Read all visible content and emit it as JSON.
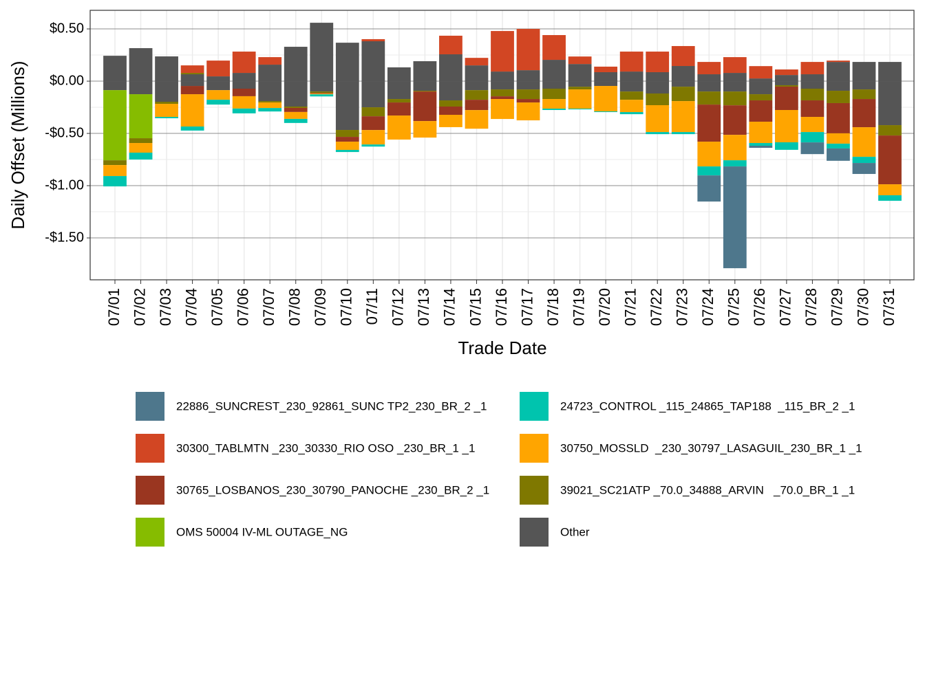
{
  "chart_data": {
    "type": "stacked_bar",
    "x_label": "Trade Date",
    "y_label": "Daily Offset (Millions)",
    "categories": [
      "07/01",
      "07/02",
      "07/03",
      "07/04",
      "07/05",
      "07/06",
      "07/07",
      "07/08",
      "07/09",
      "07/10",
      "07/11",
      "07/12",
      "07/13",
      "07/14",
      "07/15",
      "07/16",
      "07/17",
      "07/18",
      "07/19",
      "07/20",
      "07/21",
      "07/22",
      "07/23",
      "07/24",
      "07/25",
      "07/26",
      "07/27",
      "07/28",
      "07/29",
      "07/30",
      "07/31"
    ],
    "ylim": [
      -1.901,
      0.678
    ],
    "yticks": [
      {
        "value": 0.5,
        "label": "$0.50"
      },
      {
        "value": 0,
        "label": "$0.00"
      },
      {
        "value": -0.5,
        "label": "-$0.50"
      },
      {
        "value": -1,
        "label": "-$1.00"
      },
      {
        "value": -1.5,
        "label": "-$1.50"
      }
    ],
    "grid": true,
    "series": [
      {
        "name": "22886_SUNCREST_230_92861_SUNC TP2_230_BR_2 _1",
        "color": "#4e778c",
        "values": [
          0,
          0,
          0,
          0,
          0,
          0,
          0,
          0,
          0,
          0,
          0,
          0,
          0,
          0,
          0,
          0,
          0,
          0,
          0,
          0,
          0,
          0,
          0,
          -0.25,
          -0.974,
          -0.02,
          0,
          -0.112,
          -0.118,
          -0.105,
          0
        ]
      },
      {
        "name": "24723_CONTROL _115_24865_TAP188  _115_BR_2 _1",
        "color": "#00c4ae",
        "values": [
          -0.099,
          -0.066,
          -0.013,
          -0.039,
          -0.046,
          -0.046,
          -0.033,
          -0.039,
          -0.02,
          -0.02,
          -0.02,
          0,
          0,
          0,
          0,
          0,
          0,
          -0.013,
          -0.007,
          -0.007,
          -0.02,
          -0.02,
          -0.02,
          -0.086,
          -0.059,
          -0.026,
          -0.072,
          -0.099,
          -0.046,
          -0.059,
          -0.053
        ]
      },
      {
        "name": "30300_TABLMTN _230_30330_RIO OSO _230_BR_1 _1",
        "color": "#d24623",
        "values": [
          0,
          0,
          0,
          0.072,
          0.151,
          0.204,
          0.072,
          0,
          0,
          0,
          0.02,
          0,
          0,
          0.178,
          0.072,
          0.388,
          0.395,
          0.237,
          0.072,
          0.053,
          0.191,
          0.197,
          0.191,
          0.118,
          0.151,
          0.118,
          0.053,
          0.118,
          0.013,
          0,
          0
        ]
      },
      {
        "name": "30750_MOSSLD  _230_30797_LASAGUIL_230_BR_1 _1",
        "color": "#ffa500",
        "values": [
          -0.105,
          -0.092,
          -0.125,
          -0.309,
          -0.092,
          -0.118,
          -0.053,
          -0.066,
          -0.007,
          -0.079,
          -0.138,
          -0.23,
          -0.158,
          -0.118,
          -0.178,
          -0.191,
          -0.171,
          -0.092,
          -0.184,
          -0.243,
          -0.118,
          -0.257,
          -0.296,
          -0.237,
          -0.243,
          -0.204,
          -0.309,
          -0.145,
          -0.099,
          -0.283,
          -0.105
        ]
      },
      {
        "name": "30765_LOSBANOS_230_30790_PANOCHE _230_BR_2 _1",
        "color": "#9a3620",
        "values": [
          0,
          0,
          0,
          -0.079,
          0,
          -0.072,
          0,
          -0.039,
          -0.007,
          -0.046,
          -0.132,
          -0.125,
          -0.283,
          -0.079,
          -0.099,
          -0.026,
          -0.033,
          0,
          0,
          0,
          0,
          0,
          0,
          -0.355,
          -0.283,
          -0.204,
          -0.224,
          -0.158,
          -0.289,
          -0.27,
          -0.467
        ]
      },
      {
        "name": "39021_SC21ATP _70.0_34888_ARVIN   _70.0_BR_1 _1",
        "color": "#7f7800",
        "values": [
          -0.046,
          -0.046,
          -0.02,
          0.013,
          0,
          0,
          -0.013,
          -0.013,
          -0.013,
          -0.066,
          -0.086,
          -0.033,
          -0.007,
          -0.059,
          -0.092,
          -0.066,
          -0.092,
          -0.099,
          -0.026,
          0,
          -0.079,
          -0.112,
          -0.138,
          -0.125,
          -0.132,
          -0.059,
          -0.013,
          -0.112,
          -0.118,
          -0.092,
          -0.099
        ]
      },
      {
        "name": "OMS 50004 IV-ML OUTAGE_NG",
        "color": "#86bc00",
        "values": [
          -0.671,
          -0.421,
          0,
          0,
          0,
          0,
          0,
          0,
          0,
          0,
          0,
          0,
          0,
          0,
          0,
          0,
          0,
          0,
          0,
          0,
          0,
          0,
          0,
          0,
          0,
          0,
          0,
          0,
          0,
          0,
          0
        ]
      },
      {
        "name": "Other",
        "color": "#555555",
        "values": [
          0.243,
          0.316,
          0.237,
          0.066,
          0.046,
          0.079,
          0.158,
          0.329,
          0.559,
          0.368,
          0.382,
          0.132,
          0.191,
          0.257,
          0.151,
          0.092,
          0.105,
          0.204,
          0.164,
          0.086,
          0.092,
          0.086,
          0.145,
          0.066,
          0.079,
          0.026,
          0.059,
          0.066,
          0.184,
          0.184,
          0.184
        ],
        "negative_values": [
          -0.086,
          -0.125,
          -0.197,
          -0.046,
          -0.086,
          -0.072,
          -0.191,
          -0.243,
          -0.099,
          -0.467,
          -0.25,
          -0.171,
          -0.092,
          -0.184,
          -0.086,
          -0.079,
          -0.079,
          -0.072,
          -0.053,
          -0.046,
          -0.099,
          -0.118,
          -0.053,
          -0.099,
          -0.099,
          -0.125,
          -0.039,
          -0.072,
          -0.092,
          -0.079,
          -0.421
        ]
      }
    ]
  }
}
